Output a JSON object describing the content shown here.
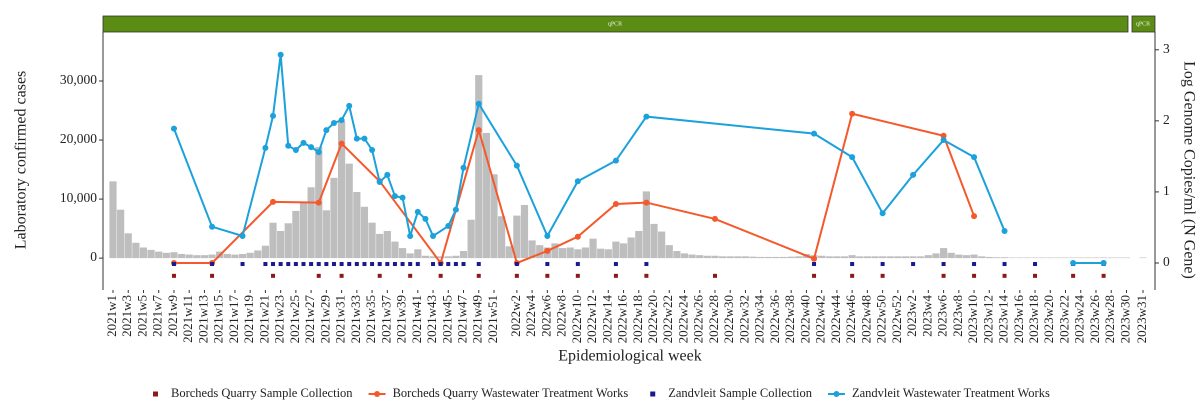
{
  "chart_data": {
    "type": "combo",
    "facets": [
      "qPCR",
      "qPCR"
    ],
    "x_label": "Epidemiological week",
    "y_label": "Laboratory confirmed cases",
    "y2_label": "Log Genome Copies/ml (N Gene)",
    "ylim": [
      -5400,
      38300
    ],
    "yticks": [
      0,
      {
        "value": 10000,
        "label": "10,000"
      },
      {
        "value": 20000,
        "label": "20,000"
      },
      {
        "value": 30000,
        "label": "30,000"
      }
    ],
    "y2lim": [
      -0.38,
      3.25
    ],
    "y2ticks": [
      0,
      1,
      2,
      3
    ],
    "categories": [
      "2021w1",
      null,
      "2021w3",
      null,
      "2021w5",
      null,
      "2021w7",
      null,
      "2021w9",
      null,
      "2021w11",
      null,
      "2021w13",
      null,
      "2021w15",
      null,
      "2021w17",
      null,
      "2021w19",
      null,
      "2021w21",
      null,
      "2021w23",
      null,
      "2021w25",
      null,
      "2021w27",
      null,
      "2021w29",
      null,
      "2021w31",
      null,
      "2021w33",
      null,
      "2021w35",
      null,
      "2021w37",
      null,
      "2021w39",
      null,
      "2021w41",
      null,
      "2021w43",
      null,
      "2021w45",
      null,
      "2021w47",
      null,
      "2021w49",
      null,
      "2021w51",
      null,
      null,
      "2022w2",
      null,
      "2022w4",
      null,
      "2022w6",
      null,
      "2022w8",
      null,
      "2022w10",
      null,
      "2022w12",
      null,
      "2022w14",
      null,
      "2022w16",
      null,
      "2022w18",
      null,
      "2022w20",
      null,
      "2022w22",
      null,
      "2022w24",
      null,
      "2022w26",
      null,
      "2022w28",
      null,
      "2022w30",
      null,
      "2022w32",
      null,
      "2022w34",
      null,
      "2022w36",
      null,
      "2022w38",
      null,
      "2022w40",
      null,
      "2022w42",
      null,
      "2022w44",
      null,
      "2022w46",
      null,
      "2022w48",
      null,
      "2022w50",
      null,
      "2022w52",
      null,
      "2023w2",
      null,
      "2023w4",
      null,
      "2023w6",
      null,
      "2023w8",
      null,
      "2023w10",
      null,
      "2023w12",
      null,
      "2023w14",
      null,
      "2023w16",
      null,
      "2023w18",
      null,
      "2023w20",
      null,
      "2023w22",
      null,
      "2023w24",
      null,
      "2023w26",
      null,
      "2023w28",
      null,
      "2023w30",
      "2023w31"
    ],
    "series": [
      {
        "type": "bar",
        "color": "#bebebe",
        "values": [
          13000,
          8200,
          4200,
          2600,
          1800,
          1400,
          1100,
          900,
          1000,
          700,
          600,
          500,
          500,
          600,
          1100,
          700,
          600,
          700,
          900,
          1300,
          2100,
          6000,
          4600,
          5900,
          8000,
          9600,
          12000,
          18800,
          8100,
          13600,
          23200,
          16000,
          11200,
          8700,
          6000,
          4100,
          4600,
          2800,
          1700,
          800,
          1500,
          400,
          300,
          300,
          300,
          400,
          1200,
          6500,
          31000,
          21200,
          14200,
          7100,
          2000,
          7200,
          9000,
          3000,
          2200,
          1800,
          2500,
          1700,
          1800,
          1500,
          1800,
          3300,
          1600,
          1500,
          2800,
          2500,
          3500,
          4600,
          11300,
          5800,
          4500,
          2200,
          1200,
          800,
          600,
          500,
          400,
          400,
          300,
          300,
          300,
          300,
          250,
          200,
          200,
          200,
          200,
          250,
          300,
          700,
          500,
          400,
          300,
          300,
          300,
          500,
          300,
          300,
          300,
          300,
          300,
          300,
          300,
          300,
          300,
          500,
          800,
          1700,
          900,
          600,
          500,
          600,
          300,
          200,
          150,
          150,
          100,
          100,
          100,
          100,
          100,
          100,
          100,
          100,
          100,
          100,
          100,
          100,
          100,
          100,
          100,
          100,
          100
        ]
      },
      {
        "type": "point",
        "name": "Borcheds Quarry Sample Collection",
        "color": "#8b1a1a",
        "x": [
          "2021w9",
          "2021w14",
          "2021w22",
          "2021w28",
          "2021w31",
          "2021w36",
          "2021w40",
          "2021w44",
          "2021w49",
          "2022w2",
          "2022w6",
          "2022w10",
          "2022w15",
          "2022w19",
          "2022w28",
          "2022w41",
          "2022w46",
          "2022w50",
          "2023w6",
          "2023w10",
          "2023w14",
          "2023w18",
          "2023w23",
          "2023w27"
        ],
        "values": [
          -3000,
          -3000,
          -3000,
          -3000,
          -3000,
          -3000,
          -3000,
          -3000,
          -3000,
          -3000,
          -3000,
          -3000,
          -3000,
          -3000,
          -3000,
          -3000,
          -3000,
          -3000,
          -3000,
          -3000,
          -3000,
          -3000,
          -3000,
          -3000
        ]
      },
      {
        "type": "line",
        "name": "Borcheds Quarry Wastewater Treatment Works",
        "color": "#f4592c",
        "axis": "y2",
        "x": [
          "2021w9",
          "2021w14",
          "2021w22",
          "2021w28",
          "2021w31",
          "2021w36",
          "2021w44",
          "2021w49",
          "2022w2",
          "2022w6",
          "2022w10",
          "2022w15",
          "2022w19",
          "2022w28",
          "2022w41",
          "2022w46",
          "2023w6",
          "2023w10",
          null,
          "2023w27"
        ],
        "values": [
          0,
          0,
          0.86,
          0.85,
          1.68,
          1.15,
          0,
          1.87,
          0,
          0.17,
          0.37,
          0.83,
          0.85,
          0.62,
          0.06,
          2.1,
          1.79,
          0.66,
          null,
          0
        ]
      },
      {
        "type": "point",
        "name": "Zandvleit Sample Collection",
        "color": "#1a1a8c",
        "x": [
          "2021w9",
          "2021w14",
          "2021w18",
          "2021w21",
          "2021w22",
          "2021w23",
          "2021w24",
          "2021w25",
          "2021w26",
          "2021w27",
          "2021w28",
          "2021w29",
          "2021w30",
          "2021w31",
          "2021w32",
          "2021w33",
          "2021w34",
          "2021w35",
          "2021w36",
          "2021w37",
          "2021w38",
          "2021w39",
          "2021w40",
          "2021w41",
          "2021w43",
          "2021w44",
          "2021w45",
          "2021w46",
          "2021w47",
          "2021w49",
          "2022w2",
          "2022w6",
          "2022w10",
          "2022w15",
          "2022w19",
          "2022w41",
          "2022w46",
          "2022w50",
          "2023w2",
          "2023w6",
          "2023w10",
          "2023w14",
          "2023w18",
          "2023w23",
          "2023w27"
        ],
        "values": [
          -1000,
          -1000,
          -1000,
          -1000,
          -1000,
          -1000,
          -1000,
          -1000,
          -1000,
          -1000,
          -1000,
          -1000,
          -1000,
          -1000,
          -1000,
          -1000,
          -1000,
          -1000,
          -1000,
          -1000,
          -1000,
          -1000,
          -1000,
          -1000,
          -1000,
          -1000,
          -1000,
          -1000,
          -1000,
          -1000,
          -1000,
          -1000,
          -1000,
          -1000,
          -1000,
          -1000,
          -1000,
          -1000,
          -1000,
          -1000,
          -1000,
          -1000,
          -1000,
          -1000,
          -1000
        ]
      },
      {
        "type": "line",
        "name": "Zandvleit Wastewater Treatment Works",
        "color": "#1ba1db",
        "axis": "y2",
        "x": [
          "2021w9",
          "2021w14",
          "2021w18",
          "2021w21",
          "2021w22",
          "2021w23",
          "2021w24",
          "2021w25",
          "2021w26",
          "2021w27",
          "2021w28",
          "2021w29",
          "2021w30",
          "2021w31",
          "2021w32",
          "2021w33",
          "2021w34",
          "2021w35",
          "2021w36",
          "2021w37",
          "2021w38",
          "2021w39",
          "2021w40",
          "2021w41",
          "2021w42",
          "2021w43",
          "2021w45",
          "2021w46",
          "2021w47",
          "2021w49",
          "2022w2",
          "2022w6",
          "2022w10",
          "2022w15",
          "2022w19",
          "2022w41",
          "2022w46",
          "2022w50",
          "2023w2",
          "2023w6",
          "2023w10",
          "2023w14",
          null,
          "2023w23",
          "2023w27"
        ],
        "values": [
          1.89,
          0.51,
          0.38,
          1.62,
          2.07,
          2.93,
          1.65,
          1.59,
          1.69,
          1.63,
          1.56,
          1.87,
          1.97,
          2.01,
          2.21,
          1.75,
          1.75,
          1.59,
          1.14,
          1.24,
          0.94,
          0.92,
          0.38,
          0.72,
          0.62,
          0.38,
          0.52,
          0.75,
          1.34,
          2.24,
          1.37,
          0.38,
          1.15,
          1.44,
          2.06,
          1.82,
          1.49,
          0.7,
          1.24,
          1.73,
          1.49,
          0.45,
          null,
          0,
          0
        ]
      }
    ]
  }
}
